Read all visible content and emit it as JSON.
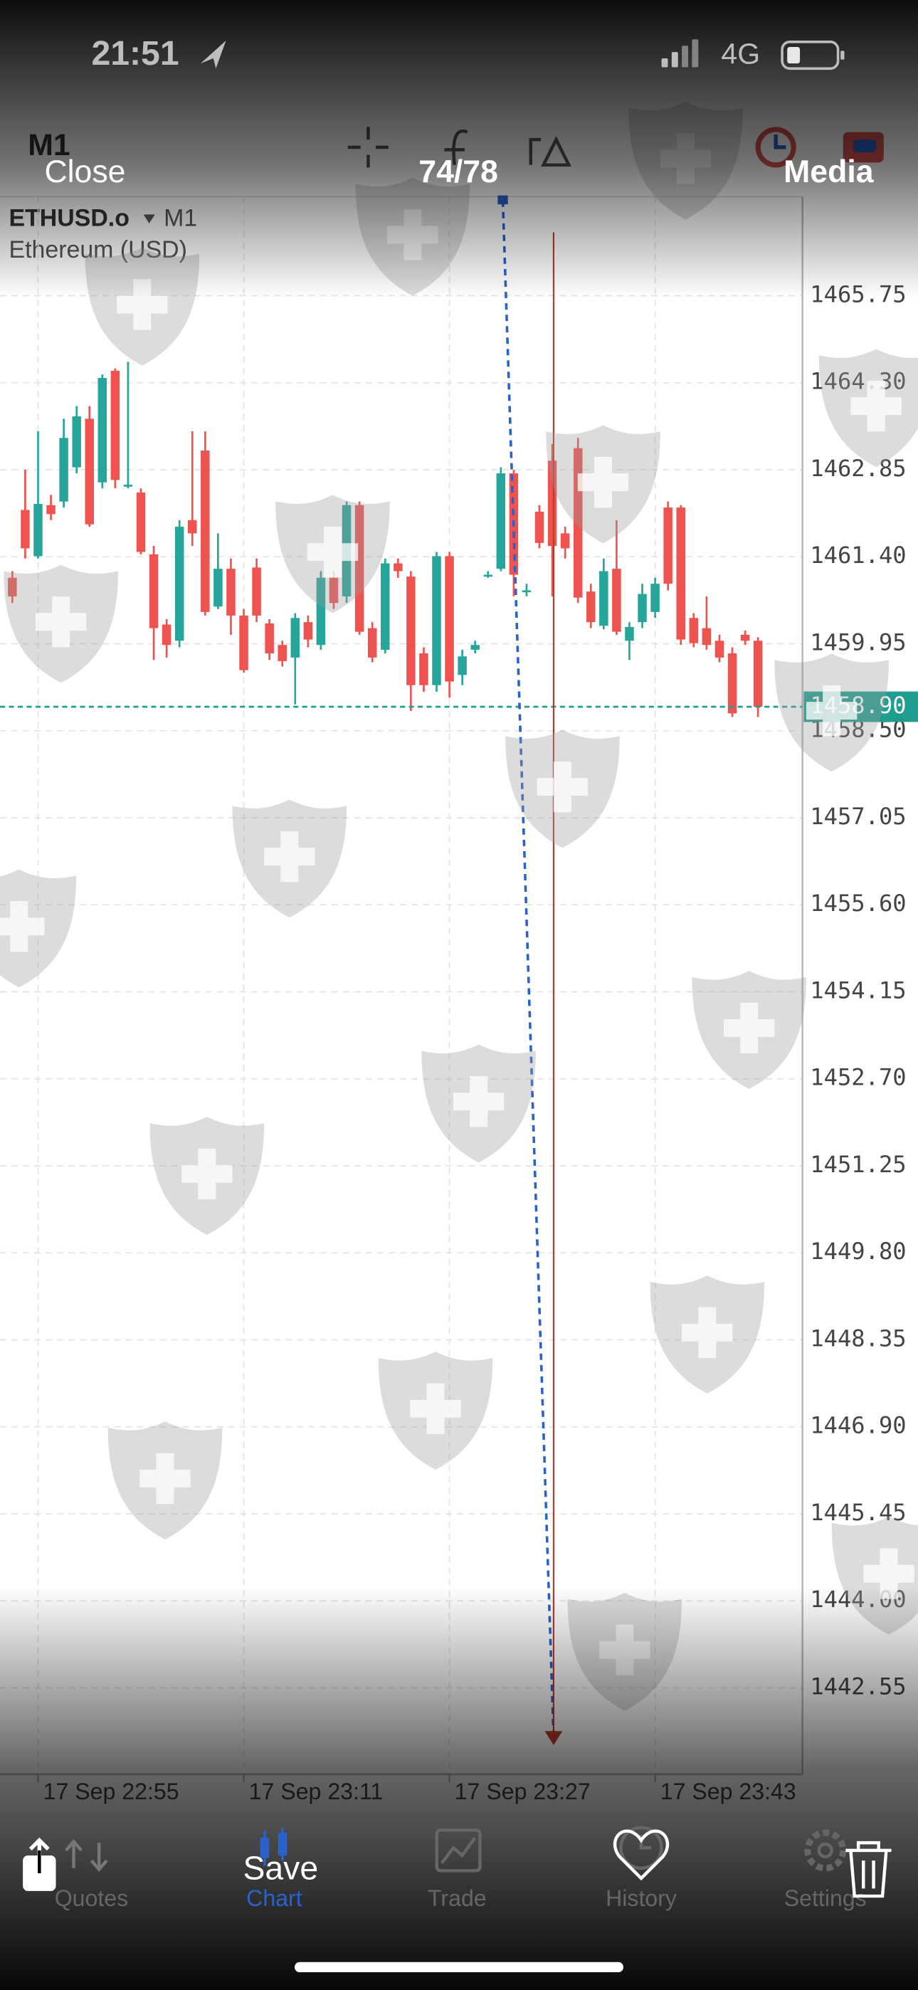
{
  "status_bar": {
    "time": "21:51",
    "network": "4G"
  },
  "viewer": {
    "close": "Close",
    "counter": "74/78",
    "media": "Media",
    "save": "Save"
  },
  "toolbar": {
    "timeframe": "M1"
  },
  "chart_data": {
    "type": "candlestick",
    "symbol": "ETHUSD.o",
    "timeframe": "M1",
    "description": "Ethereum (USD)",
    "up_color": "#26a69a",
    "down_color": "#ef5350",
    "grid": true,
    "x": [
      1373,
      1374,
      1375,
      1376,
      1377,
      1378,
      1379,
      1380,
      1381,
      1382,
      1383,
      1384,
      1385,
      1386,
      1387,
      1388,
      1389,
      1390,
      1391,
      1392,
      1393,
      1394,
      1395,
      1396,
      1397,
      1398,
      1399,
      1400,
      1401,
      1402,
      1403,
      1404,
      1405,
      1406,
      1407,
      1408,
      1409,
      1410,
      1411,
      1412,
      1413,
      1414,
      1415,
      1416,
      1417,
      1418,
      1419,
      1420,
      1421,
      1422,
      1423,
      1424,
      1425,
      1426,
      1427,
      1428,
      1429,
      1430,
      1431
    ],
    "open": [
      1461.05,
      1462.18,
      1461.41,
      1462.26,
      1462.32,
      1462.89,
      1463.7,
      1462.64,
      1464.5,
      1462.6,
      1462.47,
      1461.44,
      1460.27,
      1460.0,
      1462.01,
      1463.17,
      1460.57,
      1461.2,
      1460.42,
      1461.22,
      1460.29,
      1459.93,
      1459.72,
      1460.31,
      1459.93,
      1461.05,
      1460.74,
      1462.26,
      1460.21,
      1459.85,
      1461.29,
      1461.07,
      1459.79,
      1459.26,
      1461.41,
      1459.43,
      1459.85,
      1461.1,
      1461.2,
      1462.79,
      1460.84,
      1462.15,
      1463.0,
      1461.79,
      1463.21,
      1460.82,
      1460.25,
      1461.2,
      1460.0,
      1460.31,
      1460.48,
      1462.22,
      1462.22,
      1460.38,
      1460.21,
      1460.0,
      1459.79,
      1460.1,
      1460.0
    ],
    "high": [
      1461.16,
      1462.85,
      1463.49,
      1462.43,
      1463.7,
      1463.91,
      1463.91,
      1464.44,
      1464.54,
      1464.65,
      1462.54,
      1461.58,
      1460.36,
      1462.01,
      1463.49,
      1463.49,
      1461.79,
      1461.37,
      1460.53,
      1461.37,
      1460.36,
      1460.0,
      1460.46,
      1460.42,
      1461.16,
      1461.16,
      1462.32,
      1462.32,
      1460.31,
      1461.37,
      1461.37,
      1461.16,
      1459.89,
      1461.48,
      1461.48,
      1459.85,
      1460.0,
      1461.16,
      1462.89,
      1462.85,
      1460.95,
      1462.26,
      1463.28,
      1461.9,
      1463.38,
      1460.95,
      1461.37,
      1462.01,
      1460.31,
      1460.95,
      1461.05,
      1462.32,
      1462.26,
      1460.46,
      1460.74,
      1460.1,
      1459.89,
      1460.17,
      1460.06
    ],
    "low": [
      1460.63,
      1461.37,
      1461.37,
      1462.01,
      1462.22,
      1462.79,
      1461.9,
      1462.54,
      1462.54,
      1462.54,
      1461.44,
      1459.68,
      1459.72,
      1459.89,
      1461.58,
      1460.42,
      1460.53,
      1460.1,
      1459.47,
      1460.31,
      1459.68,
      1459.57,
      1458.94,
      1459.89,
      1459.85,
      1460.53,
      1460.63,
      1460.1,
      1459.64,
      1459.79,
      1461.05,
      1458.83,
      1459.15,
      1459.15,
      1459.05,
      1459.26,
      1459.79,
      1461.05,
      1461.16,
      1460.74,
      1460.74,
      1461.54,
      1460.74,
      1461.37,
      1460.63,
      1460.21,
      1460.19,
      1460.1,
      1459.68,
      1460.21,
      1460.38,
      1460.84,
      1459.93,
      1459.89,
      1459.85,
      1459.64,
      1458.73,
      1459.93,
      1458.73
    ],
    "close": [
      1460.74,
      1461.54,
      1462.28,
      1462.11,
      1463.38,
      1463.74,
      1461.94,
      1464.38,
      1462.68,
      1462.6,
      1461.48,
      1460.21,
      1459.93,
      1461.9,
      1461.79,
      1460.48,
      1461.2,
      1460.42,
      1459.51,
      1460.42,
      1459.79,
      1459.66,
      1460.38,
      1460.02,
      1461.05,
      1460.63,
      1462.26,
      1460.15,
      1459.72,
      1461.29,
      1461.16,
      1459.26,
      1459.26,
      1461.41,
      1459.32,
      1459.74,
      1459.93,
      1461.1,
      1462.79,
      1461.1,
      1460.84,
      1461.63,
      1461.58,
      1461.54,
      1460.72,
      1460.31,
      1461.16,
      1460.15,
      1460.23,
      1460.78,
      1460.95,
      1460.95,
      1460.02,
      1459.96,
      1459.93,
      1459.72,
      1458.79,
      1460.0,
      1458.9
    ],
    "xlim": [
      1372.04,
      1434.46
    ],
    "xticks": [
      {
        "value": 1375,
        "label": "17 Sep 22:55"
      },
      {
        "value": 1391,
        "label": "17 Sep 23:11"
      },
      {
        "value": 1407,
        "label": "17 Sep 23:27"
      },
      {
        "value": 1423,
        "label": "17 Sep 23:43"
      }
    ],
    "ylim": [
      1441.11,
      1467.4
    ],
    "yticks": [
      1465.75,
      {
        "value": 1464.3,
        "label": "1464.30"
      },
      1462.85,
      {
        "value": 1461.4,
        "label": "1461.40"
      },
      1459.95,
      {
        "value": 1458.5,
        "label": "1458.50"
      },
      1457.05,
      {
        "value": 1455.6,
        "label": "1455.60"
      },
      1454.15,
      {
        "value": 1452.7,
        "label": "1452.70"
      },
      1451.25,
      {
        "value": 1449.8,
        "label": "1449.80"
      },
      1448.35,
      {
        "value": 1446.9,
        "label": "1446.90"
      },
      1445.45,
      {
        "value": 1444,
        "label": "1444.00"
      },
      1442.55
    ],
    "last_price": {
      "value": 1458.9,
      "label": "1458.90"
    },
    "last_price_color": "#1f9e8f"
  },
  "nav": {
    "items": [
      "Quotes",
      "Chart",
      "Trade",
      "History",
      "Settings"
    ],
    "active": 1
  }
}
